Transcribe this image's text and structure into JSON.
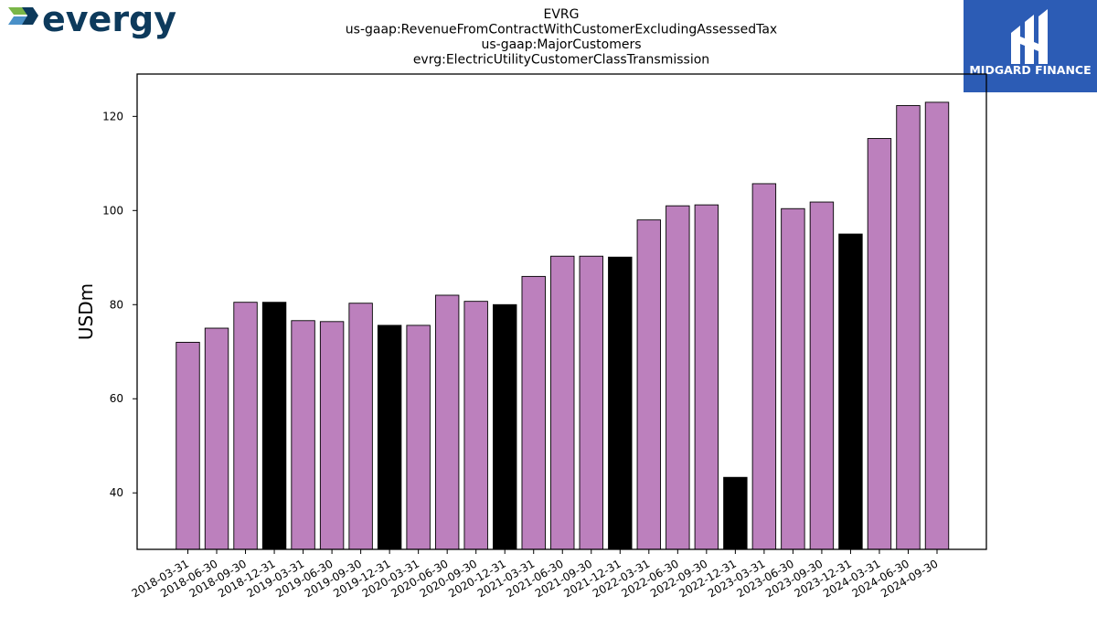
{
  "logo": {
    "text": "evergy"
  },
  "brand": {
    "text": "MIDGARD FINANCE"
  },
  "colors": {
    "regular": "#bc80bd",
    "year_end": "#000000",
    "brand_bg": "#2c5cb5",
    "logo_text": "#0d3a5c"
  },
  "chart_data": {
    "type": "bar",
    "title_lines": [
      "EVRG",
      "us-gaap:RevenueFromContractWithCustomerExcludingAssessedTax",
      "us-gaap:MajorCustomers",
      "evrg:ElectricUtilityCustomerClassTransmission"
    ],
    "ylabel": "USDm",
    "xlabel": "",
    "ylim": [
      28,
      129
    ],
    "yticks": [
      40,
      60,
      80,
      100,
      120
    ],
    "grid": false,
    "categories": [
      "2018-03-31",
      "2018-06-30",
      "2018-09-30",
      "2018-12-31",
      "2019-03-31",
      "2019-06-30",
      "2019-09-30",
      "2019-12-31",
      "2020-03-31",
      "2020-06-30",
      "2020-09-30",
      "2020-12-31",
      "2021-03-31",
      "2021-06-30",
      "2021-09-30",
      "2021-12-31",
      "2022-03-31",
      "2022-06-30",
      "2022-09-30",
      "2022-12-31",
      "2023-03-31",
      "2023-06-30",
      "2023-09-30",
      "2023-12-31",
      "2024-03-31",
      "2024-06-30",
      "2024-09-30"
    ],
    "values": [
      72.0,
      75.0,
      80.5,
      80.5,
      76.6,
      76.4,
      80.3,
      75.6,
      75.6,
      82.0,
      80.7,
      80.0,
      86.0,
      90.3,
      90.3,
      90.1,
      98.0,
      101.0,
      101.2,
      43.3,
      105.7,
      100.4,
      101.8,
      95.0,
      115.3,
      122.3,
      123.0
    ],
    "year_end": [
      false,
      false,
      false,
      true,
      false,
      false,
      false,
      true,
      false,
      false,
      false,
      true,
      false,
      false,
      false,
      true,
      false,
      false,
      false,
      true,
      false,
      false,
      false,
      true,
      false,
      false,
      false
    ]
  }
}
